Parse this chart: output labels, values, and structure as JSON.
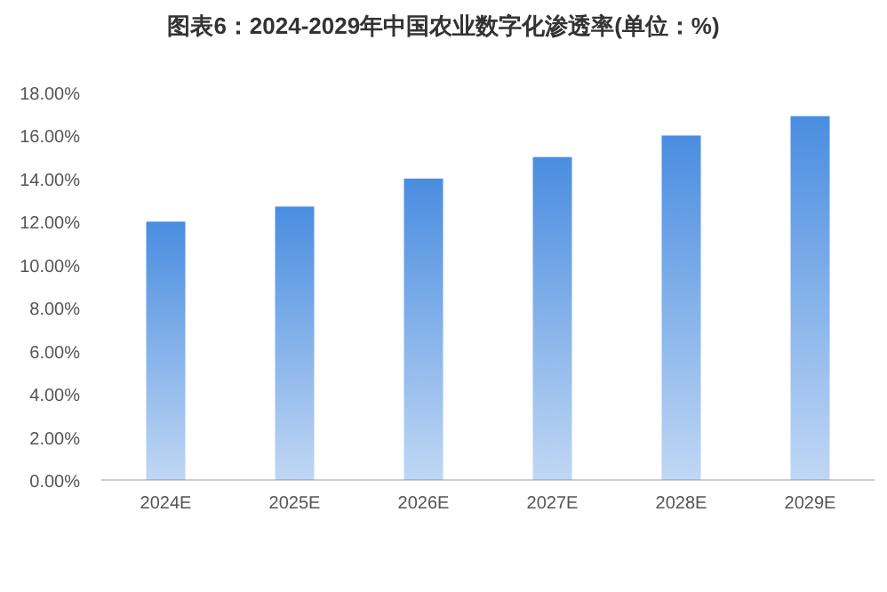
{
  "chart_data": {
    "type": "bar",
    "title": "图表6：2024-2029年中国农业数字化渗透率(单位：%)",
    "categories": [
      "2024E",
      "2025E",
      "2026E",
      "2027E",
      "2028E",
      "2029E"
    ],
    "values": [
      12.0,
      12.7,
      14.0,
      15.0,
      16.0,
      16.9
    ],
    "color": "#4a8de0",
    "ylim": [
      0,
      18
    ],
    "yticks": [
      {
        "value": 0,
        "label": "0.00%"
      },
      {
        "value": 2,
        "label": "2.00%"
      },
      {
        "value": 4,
        "label": "4.00%"
      },
      {
        "value": 6,
        "label": "6.00%"
      },
      {
        "value": 8,
        "label": "8.00%"
      },
      {
        "value": 10,
        "label": "10.00%"
      },
      {
        "value": 12,
        "label": "12.00%"
      },
      {
        "value": 14,
        "label": "14.00%"
      },
      {
        "value": 16,
        "label": "16.00%"
      },
      {
        "value": 18,
        "label": "18.00%"
      }
    ],
    "grid": false
  }
}
